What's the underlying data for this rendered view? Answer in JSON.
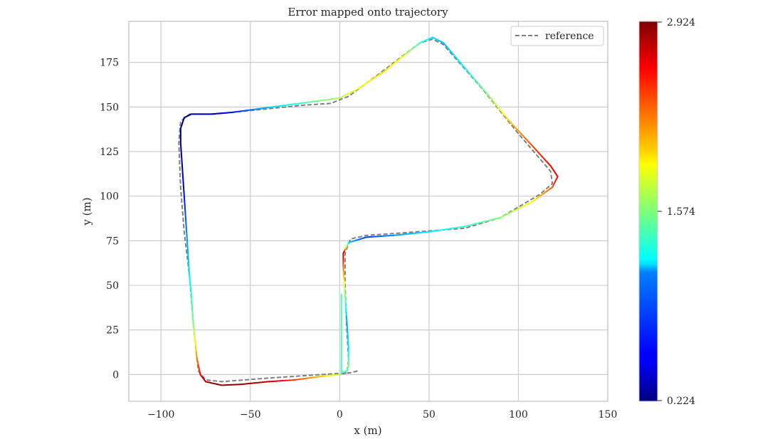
{
  "chart_data": {
    "type": "line",
    "title": "Error mapped onto trajectory",
    "xlabel": "x (m)",
    "ylabel": "y (m)",
    "xlim": [
      -118,
      150
    ],
    "ylim": [
      -15,
      198
    ],
    "x_ticks": [
      -100,
      -50,
      0,
      50,
      100,
      150
    ],
    "y_ticks": [
      0,
      25,
      50,
      75,
      100,
      125,
      150,
      175
    ],
    "grid": true,
    "legend": {
      "placement": "top-right",
      "entries": [
        "reference"
      ]
    },
    "colormap": "jet",
    "colorbar": {
      "min": 0.224,
      "max": 2.924,
      "tick_labels": [
        "2.924",
        "1.574",
        "0.224"
      ]
    },
    "series": [
      {
        "name": "reference",
        "style": "dashed",
        "color": "#808080",
        "points": [
          [
            10,
            2
          ],
          [
            6,
            1
          ],
          [
            -10,
            0
          ],
          [
            -40,
            -2
          ],
          [
            -66,
            -4
          ],
          [
            -75,
            -3
          ],
          [
            -79,
            2
          ],
          [
            -80,
            10
          ],
          [
            -82,
            30
          ],
          [
            -84,
            55
          ],
          [
            -87,
            80
          ],
          [
            -89,
            105
          ],
          [
            -90,
            130
          ],
          [
            -89,
            142
          ],
          [
            -84,
            146
          ],
          [
            -70,
            146
          ],
          [
            -50,
            148
          ],
          [
            -20,
            151
          ],
          [
            -5,
            152
          ],
          [
            5,
            156
          ],
          [
            20,
            167
          ],
          [
            45,
            186
          ],
          [
            52,
            188
          ],
          [
            58,
            185
          ],
          [
            80,
            160
          ],
          [
            100,
            135
          ],
          [
            118,
            114
          ],
          [
            119,
            107
          ],
          [
            112,
            101
          ],
          [
            90,
            88
          ],
          [
            70,
            82
          ],
          [
            30,
            79
          ],
          [
            15,
            78
          ],
          [
            6,
            76
          ],
          [
            3,
            68
          ],
          [
            3,
            50
          ],
          [
            4,
            25
          ],
          [
            5,
            8
          ],
          [
            4,
            1
          ],
          [
            0,
            0
          ]
        ]
      },
      {
        "name": "trajectory",
        "style": "solid",
        "colored_by": "error",
        "points": [
          [
            0,
            0,
            1.7
          ],
          [
            -10,
            -1,
            2.05
          ],
          [
            -25,
            -3,
            2.4
          ],
          [
            -40,
            -4,
            2.75
          ],
          [
            -55,
            -5.5,
            2.85
          ],
          [
            -66,
            -6,
            2.9
          ],
          [
            -75,
            -4,
            2.8
          ],
          [
            -78,
            0,
            2.6
          ],
          [
            -80,
            10,
            2.2
          ],
          [
            -81,
            20,
            1.85
          ],
          [
            -82,
            30,
            1.55
          ],
          [
            -83,
            45,
            1.35
          ],
          [
            -84,
            55,
            1.2
          ],
          [
            -85,
            70,
            1.05
          ],
          [
            -86,
            85,
            0.85
          ],
          [
            -87,
            100,
            0.6
          ],
          [
            -88,
            115,
            0.4
          ],
          [
            -89,
            130,
            0.28
          ],
          [
            -89,
            138,
            0.25
          ],
          [
            -87,
            144,
            0.24
          ],
          [
            -83,
            146,
            0.24
          ],
          [
            -72,
            146,
            0.35
          ],
          [
            -60,
            147,
            0.6
          ],
          [
            -45,
            149,
            0.95
          ],
          [
            -30,
            151,
            1.25
          ],
          [
            -15,
            153,
            1.5
          ],
          [
            0,
            155,
            1.7
          ],
          [
            10,
            160,
            1.88
          ],
          [
            25,
            170,
            2.0
          ],
          [
            35,
            178,
            1.85
          ],
          [
            45,
            186,
            1.4
          ],
          [
            52,
            189,
            1.15
          ],
          [
            58,
            186,
            1.05
          ],
          [
            70,
            172,
            1.25
          ],
          [
            82,
            158,
            1.55
          ],
          [
            95,
            142,
            2.05
          ],
          [
            108,
            128,
            2.4
          ],
          [
            118,
            117,
            2.6
          ],
          [
            122,
            111,
            2.6
          ],
          [
            119,
            105,
            2.4
          ],
          [
            108,
            97,
            1.95
          ],
          [
            90,
            88,
            1.6
          ],
          [
            70,
            83,
            1.35
          ],
          [
            50,
            80,
            1.2
          ],
          [
            30,
            78,
            0.95
          ],
          [
            15,
            77,
            0.7
          ],
          [
            5,
            74,
            1.1
          ],
          [
            2,
            68,
            2.75
          ],
          [
            2,
            60,
            2.3
          ],
          [
            3,
            45,
            1.6
          ],
          [
            4,
            30,
            1.0
          ],
          [
            5,
            15,
            1.2
          ],
          [
            5,
            5,
            1.55
          ],
          [
            4,
            2,
            1.45
          ],
          [
            1,
            1,
            1.4
          ],
          [
            1,
            25,
            1.45
          ],
          [
            1,
            45,
            1.45
          ]
        ]
      }
    ]
  }
}
